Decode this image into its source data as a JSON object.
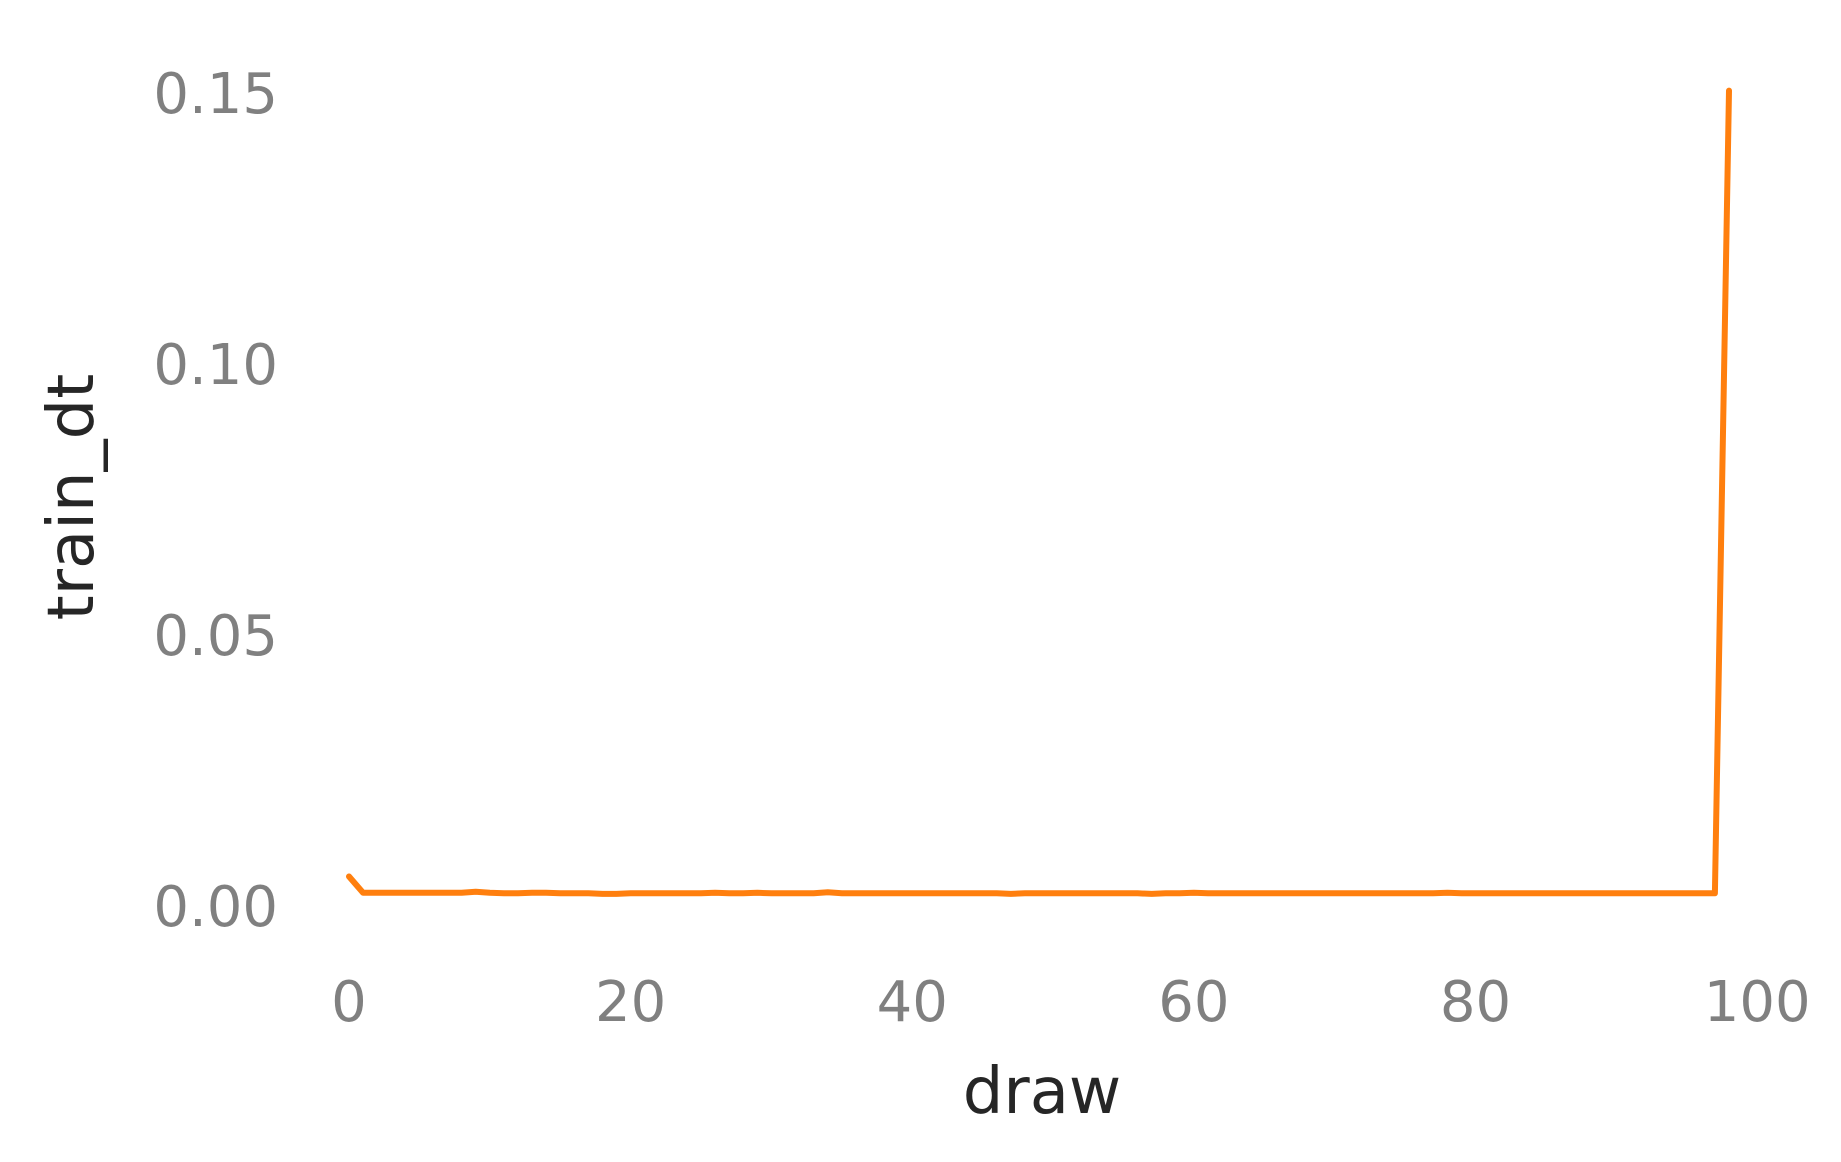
{
  "chart_data": {
    "type": "line",
    "title": "",
    "xlabel": "draw",
    "ylabel": "train_dt",
    "xlim": [
      -2.2,
      100.2
    ],
    "ylim": [
      -0.0075,
      0.158
    ],
    "xticks": [
      0,
      20,
      40,
      60,
      80,
      100
    ],
    "xtick_labels": [
      "0",
      "20",
      "40",
      "60",
      "80",
      "100"
    ],
    "yticks": [
      0.0,
      0.05,
      0.1,
      0.15
    ],
    "ytick_labels": [
      "0.00",
      "0.05",
      "0.10",
      "0.15"
    ],
    "grid": false,
    "legend": "none",
    "series": [
      {
        "color": "#ff7f0e",
        "x": [
          0,
          1,
          2,
          3,
          4,
          5,
          6,
          7,
          8,
          9,
          10,
          11,
          12,
          13,
          14,
          15,
          16,
          17,
          18,
          19,
          20,
          21,
          22,
          23,
          24,
          25,
          26,
          27,
          28,
          29,
          30,
          31,
          32,
          33,
          34,
          35,
          36,
          37,
          38,
          39,
          40,
          41,
          42,
          43,
          44,
          45,
          46,
          47,
          48,
          49,
          50,
          51,
          52,
          53,
          54,
          55,
          56,
          57,
          58,
          59,
          60,
          61,
          62,
          63,
          64,
          65,
          66,
          67,
          68,
          69,
          70,
          71,
          72,
          73,
          74,
          75,
          76,
          77,
          78,
          79,
          80,
          81,
          82,
          83,
          84,
          85,
          86,
          87,
          88,
          89,
          90,
          91,
          92,
          93,
          94,
          95,
          96,
          97,
          98
        ],
        "y": [
          0.0055,
          0.0025,
          0.0025,
          0.0025,
          0.0025,
          0.0025,
          0.0025,
          0.0025,
          0.0025,
          0.0027,
          0.0025,
          0.0024,
          0.0024,
          0.0025,
          0.0025,
          0.0024,
          0.0024,
          0.0024,
          0.0023,
          0.0023,
          0.0024,
          0.0024,
          0.0024,
          0.0024,
          0.0024,
          0.0024,
          0.0025,
          0.0024,
          0.0024,
          0.0025,
          0.0024,
          0.0024,
          0.0024,
          0.0024,
          0.0026,
          0.0024,
          0.0024,
          0.0024,
          0.0024,
          0.0024,
          0.0024,
          0.0024,
          0.0024,
          0.0024,
          0.0024,
          0.0024,
          0.0024,
          0.0023,
          0.0024,
          0.0024,
          0.0024,
          0.0024,
          0.0024,
          0.0024,
          0.0024,
          0.0024,
          0.0024,
          0.0023,
          0.0024,
          0.0024,
          0.0025,
          0.0024,
          0.0024,
          0.0024,
          0.0024,
          0.0024,
          0.0024,
          0.0024,
          0.0024,
          0.0024,
          0.0024,
          0.0024,
          0.0024,
          0.0024,
          0.0024,
          0.0024,
          0.0024,
          0.0024,
          0.0025,
          0.0024,
          0.0024,
          0.0024,
          0.0024,
          0.0024,
          0.0024,
          0.0024,
          0.0024,
          0.0024,
          0.0024,
          0.0024,
          0.0024,
          0.0024,
          0.0024,
          0.0024,
          0.0024,
          0.0024,
          0.0024,
          0.0024,
          0.1505
        ]
      }
    ]
  }
}
